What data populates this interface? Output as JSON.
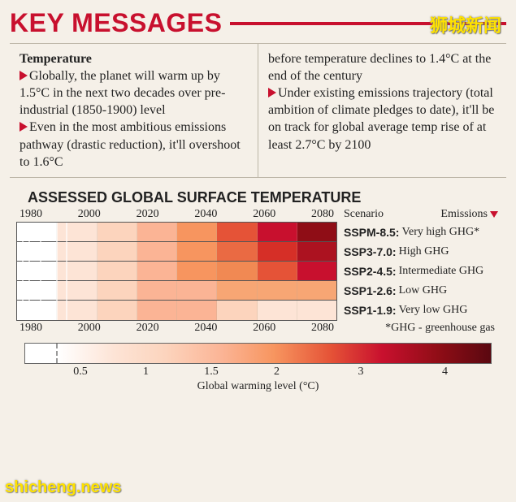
{
  "watermarks": {
    "top_right": "狮城新闻",
    "bottom_left": "shicheng.news"
  },
  "title": "KEY MESSAGES",
  "subhead": "Temperature",
  "bullets": {
    "b1": "Globally, the planet will warm up by 1.5°C in the next two decades over pre-industrial (1850-1900) level",
    "b2a": "Even in the most ambitious emissions pathway (drastic reduction), it'll overshoot to 1.6°C",
    "b2b": "before temperature declines to 1.4°C at the end of the century",
    "b3": "Under existing emissions trajectory (total ambition of climate pledges to date), it'll be on track for global average temp rise of at least 2.7°C by 2100"
  },
  "chart": {
    "title": "ASSESSED GLOBAL SURFACE TEMPERATURE",
    "x_ticks": [
      "1980",
      "2000",
      "2020",
      "2040",
      "2060",
      "2080"
    ],
    "scenario_header": "Scenario",
    "emissions_header": "Emissions",
    "scenarios": [
      {
        "code": "SSPM-8.5:",
        "desc": "Very high GHG*"
      },
      {
        "code": "SSP3-7.0:",
        "desc": "High GHG"
      },
      {
        "code": "SSP2-4.5:",
        "desc": "Intermediate GHG"
      },
      {
        "code": "SSP1-2.6:",
        "desc": "Low GHG"
      },
      {
        "code": "SSP1-1.9:",
        "desc": "Very low GHG"
      }
    ],
    "ghg_footnote": "*GHG - greenhouse gas",
    "heat_rows": [
      [
        "#fff",
        "#fde4d6",
        "#fcd4bd",
        "#fbb495",
        "#f7955f",
        "#e55337",
        "#c8102e",
        "#8f0d16"
      ],
      [
        "#fff",
        "#fde4d6",
        "#fcd4bd",
        "#fbb495",
        "#f7955f",
        "#ea6a43",
        "#d62f27",
        "#ac1220"
      ],
      [
        "#fff",
        "#fde4d6",
        "#fcd4bd",
        "#fbb495",
        "#f7955f",
        "#f18953",
        "#e55337",
        "#c8102e"
      ],
      [
        "#fff",
        "#fde4d6",
        "#fcd4bd",
        "#fbb495",
        "#fbb495",
        "#f7a674",
        "#f7a674",
        "#f7a674"
      ],
      [
        "#fff",
        "#fde4d6",
        "#fcd4bd",
        "#fbb495",
        "#fbb495",
        "#fcd4bd",
        "#fde4d6",
        "#fde4d6"
      ]
    ],
    "historical_white_bands": true,
    "colorbar": {
      "stops": [
        "#ffffff",
        "#fde4d6",
        "#fcd4bd",
        "#fbb495",
        "#f7955f",
        "#e55337",
        "#c8102e",
        "#8f0d16",
        "#5a0810"
      ],
      "ticks": [
        {
          "label": "0.5",
          "pct": 12
        },
        {
          "label": "1",
          "pct": 26
        },
        {
          "label": "1.5",
          "pct": 40
        },
        {
          "label": "2",
          "pct": 54
        },
        {
          "label": "3",
          "pct": 72
        },
        {
          "label": "4",
          "pct": 90
        }
      ],
      "axis_label": "Global warming level (°C)"
    }
  },
  "colors": {
    "accent": "#c8102e",
    "bg": "#f5f0e8",
    "rule": "#bdb6a8"
  }
}
